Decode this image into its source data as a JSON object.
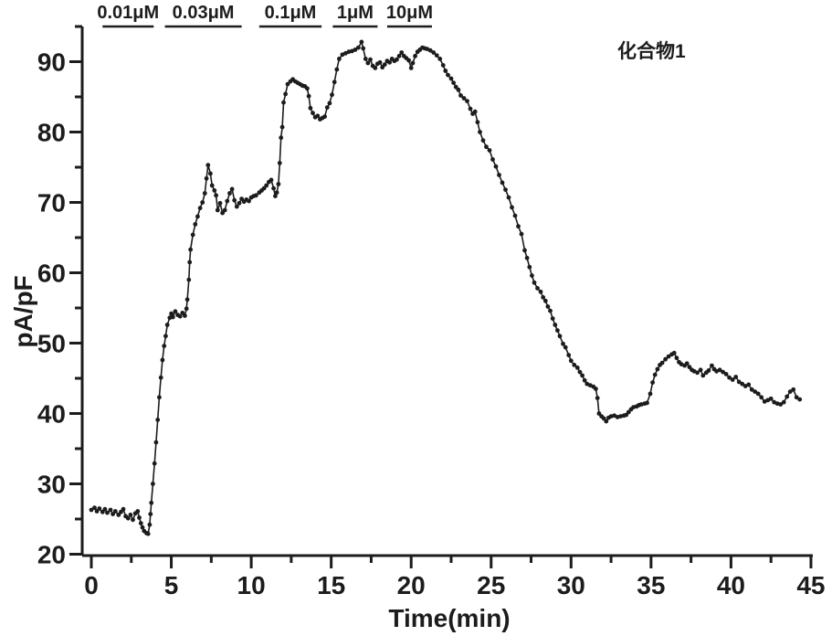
{
  "figure": {
    "annotation": "化合物1",
    "background": "#ffffff",
    "ink_color": "#1c1c1c"
  },
  "chart_data": {
    "type": "line",
    "subtype": "scatter-line-timecourse",
    "title": "",
    "xlabel": "Time(min)",
    "ylabel": "pA/pF",
    "xlim": [
      -0.6,
      45.3
    ],
    "ylim": [
      20,
      95
    ],
    "grid": false,
    "legend": "none",
    "x_major_ticks": [
      0,
      5,
      10,
      15,
      20,
      25,
      30,
      35,
      40,
      45
    ],
    "x_minor_ticks": [
      2.5,
      7.5,
      12.5,
      17.5,
      22.5,
      27.5,
      32.5,
      37.5,
      42.5
    ],
    "y_major_ticks": [
      20,
      30,
      40,
      50,
      60,
      70,
      80,
      90
    ],
    "y_minor_ticks": [
      25,
      35,
      45,
      55,
      65,
      75,
      85,
      95
    ],
    "annotations": [
      {
        "text": "化合物1",
        "x": 36.9,
        "y": 91.5
      }
    ],
    "applications": [
      {
        "label": "0.01μM",
        "t_start": 0.7,
        "t_end": 3.9
      },
      {
        "label": "0.03μM",
        "t_start": 4.6,
        "t_end": 9.4
      },
      {
        "label": "0.1μM",
        "t_start": 10.5,
        "t_end": 14.4
      },
      {
        "label": "1μM",
        "t_start": 15.1,
        "t_end": 17.9
      },
      {
        "label": "10μM",
        "t_start": 18.5,
        "t_end": 21.3
      }
    ],
    "series": [
      {
        "name": "化合物1",
        "marker": "dot",
        "color": "#1c1c1c",
        "points": [
          [
            0,
            26.3
          ],
          [
            0.2,
            26.6
          ],
          [
            0.35,
            26.1
          ],
          [
            0.5,
            26.5
          ],
          [
            0.7,
            26.0
          ],
          [
            0.85,
            26.4
          ],
          [
            1.0,
            25.9
          ],
          [
            1.2,
            26.3
          ],
          [
            1.35,
            25.7
          ],
          [
            1.5,
            26.1
          ],
          [
            1.7,
            25.6
          ],
          [
            1.85,
            26.0
          ],
          [
            2.0,
            26.4
          ],
          [
            2.15,
            25.4
          ],
          [
            2.3,
            25.1
          ],
          [
            2.45,
            25.6
          ],
          [
            2.6,
            24.9
          ],
          [
            2.75,
            25.8
          ],
          [
            2.9,
            26.1
          ],
          [
            3.0,
            25.2
          ],
          [
            3.1,
            24.4
          ],
          [
            3.2,
            23.8
          ],
          [
            3.3,
            23.3
          ],
          [
            3.45,
            23.0
          ],
          [
            3.55,
            22.9
          ],
          [
            3.65,
            24.2
          ],
          [
            3.7,
            25.7
          ],
          [
            3.75,
            27.3
          ],
          [
            3.85,
            30.0
          ],
          [
            3.95,
            32.9
          ],
          [
            4.05,
            35.9
          ],
          [
            4.15,
            39.1
          ],
          [
            4.25,
            42.3
          ],
          [
            4.35,
            45.1
          ],
          [
            4.45,
            47.6
          ],
          [
            4.55,
            49.6
          ],
          [
            4.65,
            51.0
          ],
          [
            4.75,
            52.6
          ],
          [
            4.9,
            53.6
          ],
          [
            5.0,
            54.2
          ],
          [
            5.1,
            53.7
          ],
          [
            5.25,
            54.5
          ],
          [
            5.4,
            54.0
          ],
          [
            5.55,
            53.8
          ],
          [
            5.7,
            54.3
          ],
          [
            5.85,
            53.9
          ],
          [
            5.95,
            54.9
          ],
          [
            6.0,
            56.2
          ],
          [
            6.1,
            59.0
          ],
          [
            6.15,
            61.5
          ],
          [
            6.2,
            63.3
          ],
          [
            6.35,
            65.4
          ],
          [
            6.5,
            66.9
          ],
          [
            6.65,
            68.0
          ],
          [
            6.8,
            69.2
          ],
          [
            6.95,
            70.0
          ],
          [
            7.1,
            71.3
          ],
          [
            7.2,
            73.4
          ],
          [
            7.3,
            75.3
          ],
          [
            7.45,
            74.1
          ],
          [
            7.55,
            72.4
          ],
          [
            7.7,
            71.7
          ],
          [
            7.8,
            71.0
          ],
          [
            7.9,
            68.9
          ],
          [
            8.05,
            69.9
          ],
          [
            8.2,
            68.5
          ],
          [
            8.35,
            68.9
          ],
          [
            8.5,
            70.2
          ],
          [
            8.65,
            71.3
          ],
          [
            8.8,
            71.9
          ],
          [
            8.95,
            70.3
          ],
          [
            9.1,
            69.4
          ],
          [
            9.25,
            69.9
          ],
          [
            9.4,
            70.5
          ],
          [
            9.55,
            70.1
          ],
          [
            9.7,
            70.4
          ],
          [
            9.85,
            70.2
          ],
          [
            10.0,
            70.7
          ],
          [
            10.15,
            70.9
          ],
          [
            10.3,
            71.0
          ],
          [
            10.5,
            71.4
          ],
          [
            10.65,
            71.7
          ],
          [
            10.8,
            72.0
          ],
          [
            10.95,
            72.4
          ],
          [
            11.1,
            72.9
          ],
          [
            11.25,
            73.2
          ],
          [
            11.4,
            72.0
          ],
          [
            11.5,
            70.9
          ],
          [
            11.6,
            71.4
          ],
          [
            11.7,
            72.6
          ],
          [
            11.78,
            75.6
          ],
          [
            11.86,
            79.2
          ],
          [
            11.94,
            80.7
          ],
          [
            12.02,
            84.2
          ],
          [
            12.14,
            85.4
          ],
          [
            12.28,
            86.8
          ],
          [
            12.45,
            87.2
          ],
          [
            12.6,
            87.5
          ],
          [
            12.75,
            87.2
          ],
          [
            12.9,
            87.0
          ],
          [
            13.05,
            86.8
          ],
          [
            13.2,
            86.6
          ],
          [
            13.35,
            86.5
          ],
          [
            13.5,
            86.2
          ],
          [
            13.6,
            85.1
          ],
          [
            13.7,
            83.4
          ],
          [
            13.85,
            82.7
          ],
          [
            14.0,
            82.1
          ],
          [
            14.15,
            82.3
          ],
          [
            14.3,
            81.8
          ],
          [
            14.45,
            82.0
          ],
          [
            14.6,
            82.2
          ],
          [
            14.75,
            83.5
          ],
          [
            14.9,
            84.1
          ],
          [
            15.05,
            85.3
          ],
          [
            15.2,
            87.1
          ],
          [
            15.35,
            88.9
          ],
          [
            15.5,
            90.4
          ],
          [
            15.7,
            91.0
          ],
          [
            15.9,
            91.2
          ],
          [
            16.1,
            91.4
          ],
          [
            16.3,
            91.5
          ],
          [
            16.5,
            91.7
          ],
          [
            16.7,
            92.0
          ],
          [
            16.9,
            92.8
          ],
          [
            17.0,
            91.9
          ],
          [
            17.15,
            90.4
          ],
          [
            17.3,
            89.8
          ],
          [
            17.45,
            90.3
          ],
          [
            17.6,
            89.4
          ],
          [
            17.75,
            89.1
          ],
          [
            17.9,
            89.7
          ],
          [
            18.05,
            89.9
          ],
          [
            18.2,
            89.2
          ],
          [
            18.35,
            89.6
          ],
          [
            18.5,
            90.1
          ],
          [
            18.65,
            89.9
          ],
          [
            18.8,
            90.4
          ],
          [
            18.95,
            90.1
          ],
          [
            19.1,
            90.3
          ],
          [
            19.25,
            90.8
          ],
          [
            19.4,
            91.3
          ],
          [
            19.55,
            90.8
          ],
          [
            19.7,
            90.5
          ],
          [
            19.85,
            90.2
          ],
          [
            20.0,
            89.1
          ],
          [
            20.1,
            89.8
          ],
          [
            20.25,
            90.8
          ],
          [
            20.4,
            91.4
          ],
          [
            20.55,
            91.7
          ],
          [
            20.7,
            92.0
          ],
          [
            20.85,
            91.9
          ],
          [
            21.0,
            91.8
          ],
          [
            21.2,
            91.6
          ],
          [
            21.4,
            91.3
          ],
          [
            21.6,
            90.9
          ],
          [
            21.8,
            90.4
          ],
          [
            22.0,
            89.5
          ],
          [
            22.15,
            88.7
          ],
          [
            22.3,
            88.1
          ],
          [
            22.5,
            87.6
          ],
          [
            22.65,
            87.0
          ],
          [
            22.8,
            86.4
          ],
          [
            22.95,
            86.0
          ],
          [
            23.1,
            85.2
          ],
          [
            23.3,
            84.8
          ],
          [
            23.5,
            84.4
          ],
          [
            23.7,
            83.3
          ],
          [
            23.85,
            82.6
          ],
          [
            24.0,
            82.9
          ],
          [
            24.15,
            81.4
          ],
          [
            24.3,
            80.0
          ],
          [
            24.5,
            78.8
          ],
          [
            24.7,
            77.9
          ],
          [
            24.9,
            77.4
          ],
          [
            25.1,
            76.1
          ],
          [
            25.3,
            75.1
          ],
          [
            25.5,
            73.9
          ],
          [
            25.7,
            72.8
          ],
          [
            25.9,
            71.8
          ],
          [
            26.1,
            70.7
          ],
          [
            26.3,
            69.3
          ],
          [
            26.5,
            68.1
          ],
          [
            26.7,
            66.6
          ],
          [
            26.9,
            65.5
          ],
          [
            27.1,
            63.2
          ],
          [
            27.25,
            62.1
          ],
          [
            27.4,
            60.8
          ],
          [
            27.55,
            59.6
          ],
          [
            27.7,
            58.6
          ],
          [
            27.9,
            57.8
          ],
          [
            28.1,
            57.3
          ],
          [
            28.25,
            56.5
          ],
          [
            28.4,
            56.0
          ],
          [
            28.55,
            55.2
          ],
          [
            28.7,
            54.6
          ],
          [
            28.85,
            53.5
          ],
          [
            29.0,
            52.6
          ],
          [
            29.15,
            51.8
          ],
          [
            29.3,
            51.0
          ],
          [
            29.5,
            49.9
          ],
          [
            29.65,
            49.4
          ],
          [
            29.85,
            48.3
          ],
          [
            30.0,
            47.5
          ],
          [
            30.2,
            46.9
          ],
          [
            30.4,
            46.5
          ],
          [
            30.55,
            45.9
          ],
          [
            30.7,
            45.4
          ],
          [
            30.85,
            44.7
          ],
          [
            31.0,
            44.2
          ],
          [
            31.2,
            44.0
          ],
          [
            31.4,
            43.8
          ],
          [
            31.55,
            43.5
          ],
          [
            31.65,
            42.2
          ],
          [
            31.75,
            40.0
          ],
          [
            31.9,
            39.6
          ],
          [
            32.05,
            39.3
          ],
          [
            32.2,
            38.9
          ],
          [
            32.35,
            39.4
          ],
          [
            32.5,
            39.6
          ],
          [
            32.7,
            39.7
          ],
          [
            32.9,
            39.5
          ],
          [
            33.1,
            39.6
          ],
          [
            33.3,
            39.7
          ],
          [
            33.45,
            39.8
          ],
          [
            33.6,
            40.2
          ],
          [
            33.75,
            40.6
          ],
          [
            33.9,
            40.9
          ],
          [
            34.1,
            41.0
          ],
          [
            34.25,
            41.2
          ],
          [
            34.4,
            41.3
          ],
          [
            34.6,
            41.4
          ],
          [
            34.75,
            41.5
          ],
          [
            34.95,
            42.8
          ],
          [
            35.1,
            44.4
          ],
          [
            35.25,
            45.5
          ],
          [
            35.4,
            46.3
          ],
          [
            35.55,
            46.9
          ],
          [
            35.7,
            47.2
          ],
          [
            35.9,
            47.7
          ],
          [
            36.1,
            48.1
          ],
          [
            36.3,
            48.4
          ],
          [
            36.45,
            48.6
          ],
          [
            36.6,
            47.9
          ],
          [
            36.75,
            47.3
          ],
          [
            36.9,
            47.0
          ],
          [
            37.1,
            46.8
          ],
          [
            37.25,
            47.1
          ],
          [
            37.4,
            46.6
          ],
          [
            37.55,
            46.2
          ],
          [
            37.7,
            46.0
          ],
          [
            37.9,
            45.8
          ],
          [
            38.1,
            46.2
          ],
          [
            38.25,
            45.4
          ],
          [
            38.45,
            45.8
          ],
          [
            38.6,
            46.1
          ],
          [
            38.8,
            46.8
          ],
          [
            38.95,
            46.3
          ],
          [
            39.1,
            46.0
          ],
          [
            39.3,
            46.2
          ],
          [
            39.5,
            45.9
          ],
          [
            39.7,
            45.6
          ],
          [
            39.9,
            45.1
          ],
          [
            40.1,
            44.8
          ],
          [
            40.3,
            45.2
          ],
          [
            40.5,
            44.5
          ],
          [
            40.7,
            44.2
          ],
          [
            40.9,
            43.9
          ],
          [
            41.1,
            44.1
          ],
          [
            41.3,
            43.4
          ],
          [
            41.5,
            43.1
          ],
          [
            41.7,
            42.8
          ],
          [
            41.9,
            42.3
          ],
          [
            42.1,
            41.7
          ],
          [
            42.3,
            41.9
          ],
          [
            42.5,
            42.1
          ],
          [
            42.7,
            41.6
          ],
          [
            42.9,
            41.4
          ],
          [
            43.1,
            41.3
          ],
          [
            43.3,
            41.6
          ],
          [
            43.5,
            42.4
          ],
          [
            43.7,
            43.1
          ],
          [
            43.9,
            43.4
          ],
          [
            44.1,
            42.3
          ],
          [
            44.3,
            42.0
          ]
        ]
      }
    ]
  }
}
